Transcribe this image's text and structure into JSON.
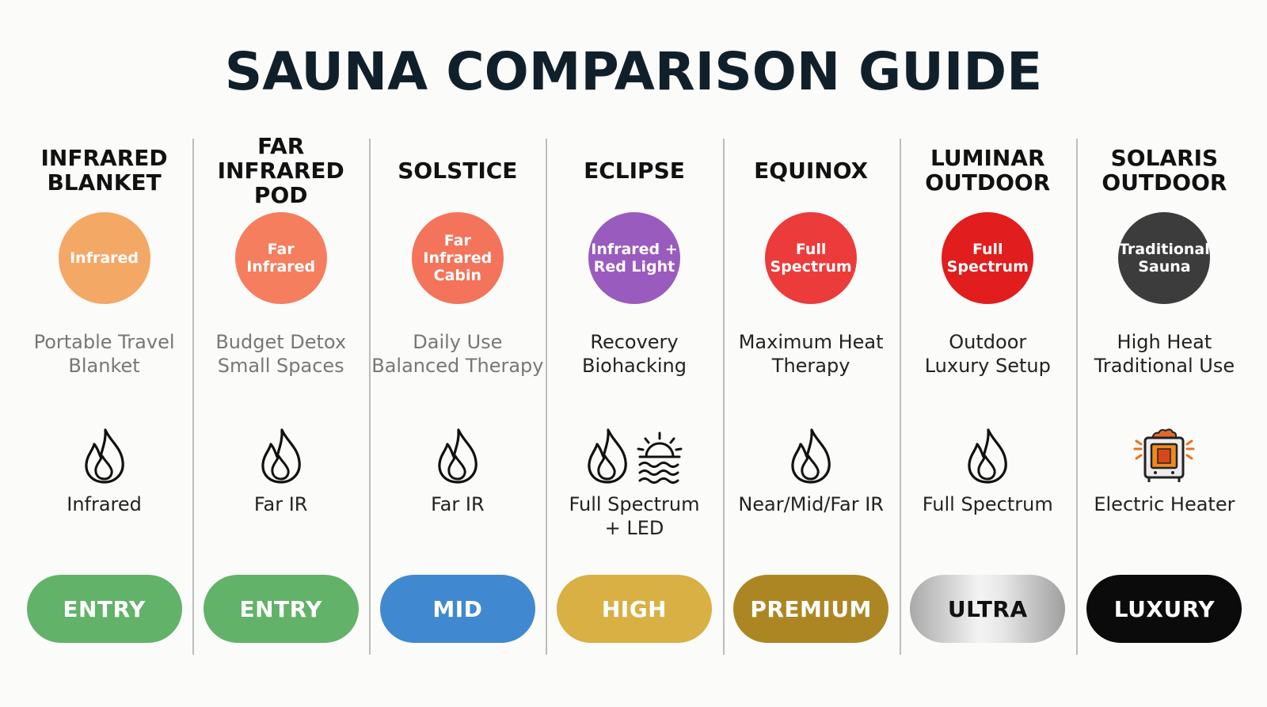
{
  "title": "SAUNA COMPARISON GUIDE",
  "columns": [
    {
      "name": "INFRARED\nBLANKET",
      "badge": "Infrared",
      "badge_color": "#f4a865",
      "use": "Portable Travel\nBlanket",
      "use_muted": true,
      "icons": [
        "flame-icon"
      ],
      "heat": "Infrared",
      "tier": "ENTRY",
      "tier_bg": "#62b26a",
      "tier_fg": "#ffffff"
    },
    {
      "name": "FAR INFRARED\nPOD",
      "badge": "Far\nInfrared",
      "badge_color": "#f47e5e",
      "use": "Budget Detox\nSmall Spaces",
      "use_muted": true,
      "icons": [
        "flame-icon"
      ],
      "heat": "Far IR",
      "tier": "ENTRY",
      "tier_bg": "#62b26a",
      "tier_fg": "#ffffff"
    },
    {
      "name": "SOLSTICE",
      "badge": "Far\nInfrared\nCabin",
      "badge_color": "#f3745a",
      "use": "Daily Use\nBalanced Therapy",
      "use_muted": true,
      "icons": [
        "flame-icon"
      ],
      "heat": "Far IR",
      "tier": "MID",
      "tier_bg": "#4089d0",
      "tier_fg": "#ffffff"
    },
    {
      "name": "ECLIPSE",
      "badge": "Infrared +\nRed Light",
      "badge_color": "#9a5bbe",
      "use": "Recovery\nBiohacking",
      "use_muted": false,
      "icons": [
        "flame-icon",
        "sunrise-icon"
      ],
      "heat": "Full Spectrum\n+ LED",
      "tier": "HIGH",
      "tier_bg": "#d8b043",
      "tier_fg": "#ffffff"
    },
    {
      "name": "EQUINOX",
      "badge": "Full\nSpectrum",
      "badge_color": "#ec3b3b",
      "use": "Maximum Heat\nTherapy",
      "use_muted": false,
      "icons": [
        "flame-icon"
      ],
      "heat": "Near/Mid/Far IR",
      "tier": "PREMIUM",
      "tier_bg": "#ad8624",
      "tier_fg": "#ffffff"
    },
    {
      "name": "LUMINAR\nOUTDOOR",
      "badge": "Full\nSpectrum",
      "badge_color": "#e11d1d",
      "use": "Outdoor\nLuxury Setup",
      "use_muted": false,
      "icons": [
        "flame-icon"
      ],
      "heat": "Full Spectrum",
      "tier": "ULTRA",
      "tier_bg": "#c9c9c9",
      "tier_fg": "#111111"
    },
    {
      "name": "SOLARIS\nOUTDOOR",
      "badge": "Traditional\nSauna",
      "badge_color": "#3c3c3c",
      "use": "High Heat\nTraditional Use",
      "use_muted": false,
      "icons": [
        "heater-icon"
      ],
      "heat": "Electric Heater",
      "tier": "LUXURY",
      "tier_bg": "#0b0b0b",
      "tier_fg": "#ffffff"
    }
  ]
}
